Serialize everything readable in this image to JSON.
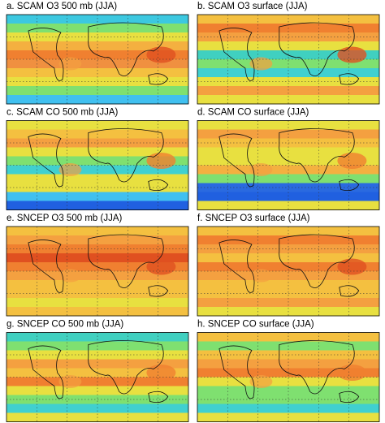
{
  "panels": [
    {
      "label": "a. SCAM O3 500 mb (JJA)"
    },
    {
      "label": "b. SCAM O3 surface (JJA)"
    },
    {
      "label": "c. SCAM CO 500 mb (JJA)"
    },
    {
      "label": "d. SCAM CO surface (JJA)"
    },
    {
      "label": "e. SNCEP O3 500 mb (JJA)"
    },
    {
      "label": "f. SNCEP O3 surface (JJA)"
    },
    {
      "label": "g. SNCEP CO 500 mb (JJA)"
    },
    {
      "label": "h. SNCEP CO surface (JJA)"
    }
  ]
}
